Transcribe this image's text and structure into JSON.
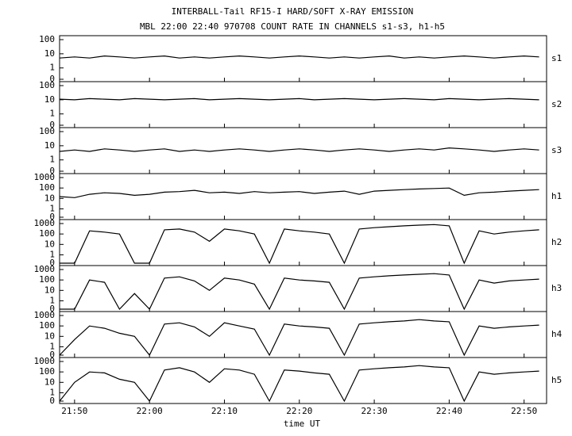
{
  "chart_data": {
    "type": "line",
    "title": "INTERBALL-Tail RF15-I HARD/SOFT X-RAY EMISSION",
    "subtitle": "MBL 22:00 22:40 970708  COUNT RATE IN CHANNELS s1-s3, h1-h5",
    "xlabel": "time UT",
    "yscale": "log",
    "x": [
      "21:48",
      "21:50",
      "21:52",
      "21:54",
      "21:56",
      "21:58",
      "22:00",
      "22:02",
      "22:04",
      "22:06",
      "22:08",
      "22:10",
      "22:12",
      "22:14",
      "22:16",
      "22:18",
      "22:20",
      "22:22",
      "22:24",
      "22:26",
      "22:28",
      "22:30",
      "22:32",
      "22:34",
      "22:36",
      "22:38",
      "22:40",
      "22:42",
      "22:44",
      "22:46",
      "22:48",
      "22:50",
      "22:52"
    ],
    "xlim": [
      "21:48",
      "22:53"
    ],
    "xticks": [
      "21:50",
      "22:00",
      "22:10",
      "22:20",
      "22:30",
      "22:40",
      "22:50"
    ],
    "series": [
      {
        "name": "s1",
        "color": "#000000",
        "ylim": [
          0,
          100
        ],
        "yticks": [
          0,
          1,
          10,
          100
        ],
        "values": [
          5,
          6,
          5,
          7,
          6,
          5,
          6,
          7,
          5,
          6,
          5,
          6,
          7,
          6,
          5,
          6,
          7,
          6,
          5,
          6,
          5,
          6,
          7,
          5,
          6,
          5,
          6,
          7,
          6,
          5,
          6,
          7,
          6
        ]
      },
      {
        "name": "s2",
        "color": "#000000",
        "ylim": [
          0,
          100
        ],
        "yticks": [
          0,
          1,
          10,
          100
        ],
        "values": [
          11,
          10,
          12,
          11,
          10,
          12,
          11,
          10,
          11,
          12,
          10,
          11,
          12,
          11,
          10,
          11,
          12,
          10,
          11,
          12,
          11,
          10,
          11,
          12,
          11,
          10,
          12,
          11,
          10,
          11,
          12,
          11,
          10
        ]
      },
      {
        "name": "s3",
        "color": "#000000",
        "ylim": [
          0,
          100
        ],
        "yticks": [
          0,
          1,
          10,
          100
        ],
        "values": [
          4,
          5,
          4,
          6,
          5,
          4,
          5,
          6,
          4,
          5,
          4,
          5,
          6,
          5,
          4,
          5,
          6,
          5,
          4,
          5,
          6,
          5,
          4,
          5,
          6,
          5,
          7,
          6,
          5,
          4,
          5,
          6,
          5
        ]
      },
      {
        "name": "h1",
        "color": "#000000",
        "ylim": [
          0,
          1000
        ],
        "yticks": [
          0,
          1,
          10,
          100,
          1000
        ],
        "values": [
          15,
          12,
          25,
          35,
          30,
          20,
          25,
          40,
          45,
          60,
          35,
          40,
          30,
          45,
          35,
          40,
          45,
          30,
          40,
          50,
          25,
          50,
          60,
          70,
          80,
          90,
          100,
          20,
          35,
          40,
          50,
          60,
          70
        ]
      },
      {
        "name": "h2",
        "color": "#000000",
        "ylim": [
          0,
          1000
        ],
        "yticks": [
          0,
          1,
          10,
          100,
          1000
        ],
        "values": [
          0,
          0,
          200,
          150,
          100,
          0,
          0,
          250,
          300,
          150,
          20,
          300,
          200,
          100,
          0,
          300,
          200,
          150,
          100,
          0,
          300,
          400,
          500,
          600,
          700,
          800,
          600,
          0,
          200,
          100,
          150,
          200,
          250
        ]
      },
      {
        "name": "h3",
        "color": "#000000",
        "ylim": [
          0,
          1000
        ],
        "yticks": [
          0,
          1,
          10,
          100,
          1000
        ],
        "values": [
          0,
          0,
          100,
          60,
          0,
          5,
          0,
          150,
          200,
          80,
          10,
          150,
          100,
          40,
          0,
          150,
          100,
          80,
          60,
          0,
          150,
          200,
          250,
          300,
          350,
          400,
          300,
          0,
          100,
          50,
          80,
          100,
          120
        ]
      },
      {
        "name": "h4",
        "color": "#000000",
        "ylim": [
          0,
          1000
        ],
        "yticks": [
          0,
          1,
          10,
          100,
          1000
        ],
        "values": [
          0,
          5,
          100,
          60,
          20,
          10,
          0,
          150,
          200,
          80,
          10,
          200,
          100,
          50,
          0,
          150,
          100,
          80,
          60,
          0,
          150,
          200,
          250,
          300,
          400,
          300,
          250,
          0,
          100,
          60,
          80,
          100,
          120
        ]
      },
      {
        "name": "h5",
        "color": "#000000",
        "ylim": [
          0,
          1000
        ],
        "yticks": [
          0,
          1,
          10,
          100,
          1000
        ],
        "values": [
          0,
          10,
          100,
          80,
          20,
          10,
          0,
          150,
          250,
          100,
          10,
          200,
          150,
          60,
          0,
          150,
          120,
          80,
          60,
          0,
          150,
          200,
          250,
          300,
          400,
          300,
          250,
          0,
          100,
          60,
          80,
          100,
          120
        ]
      }
    ]
  }
}
